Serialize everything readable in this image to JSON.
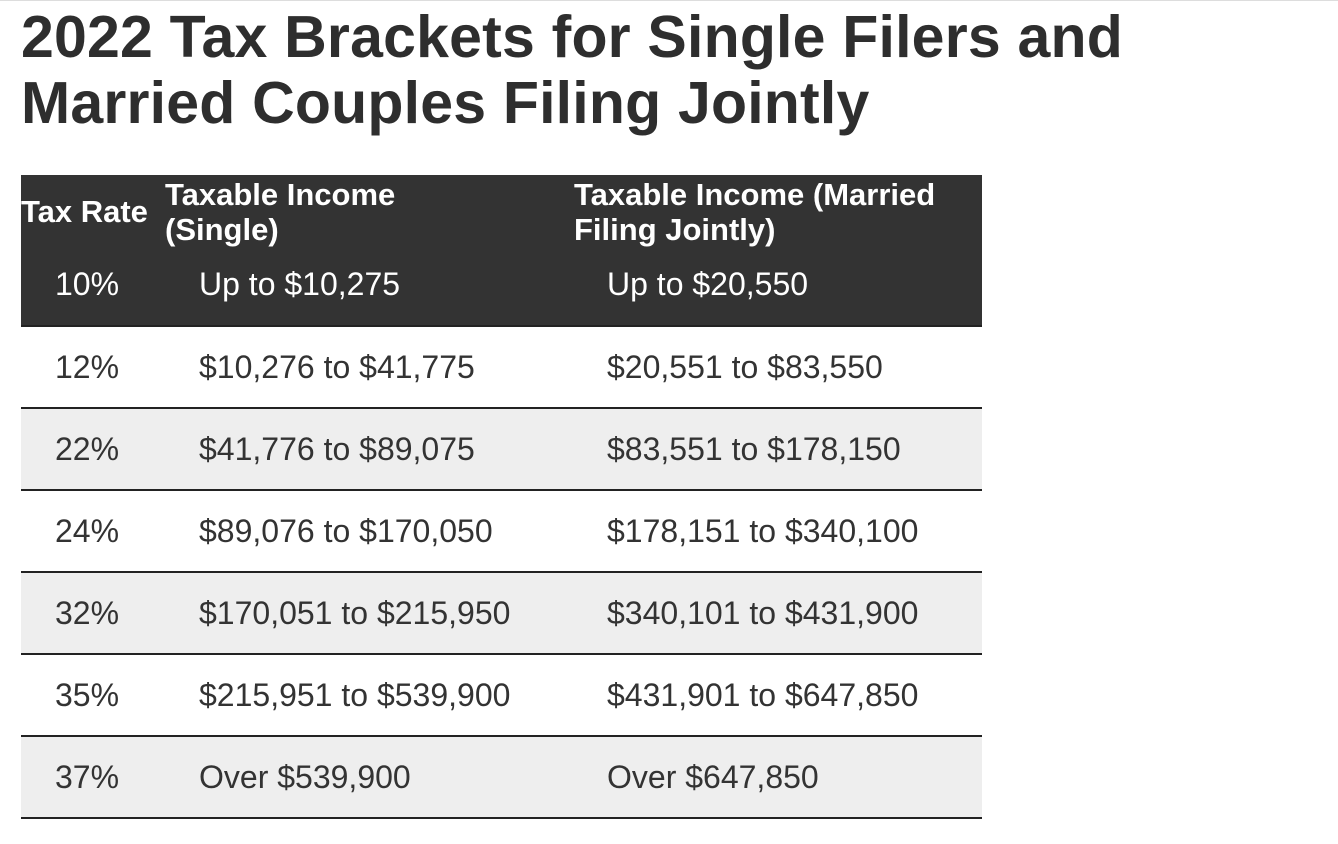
{
  "title": "2022 Tax Brackets for Single Filers and Married Couples Filing Jointly",
  "table": {
    "headers": [
      "Tax Rate",
      "Taxable Income (Single)",
      "Taxable Income (Married Filing Jointly)"
    ],
    "rows": [
      [
        "10%",
        "Up to $10,275",
        "Up to $20,550"
      ],
      [
        "12%",
        "$10,276 to $41,775",
        "$20,551 to $83,550"
      ],
      [
        "22%",
        "$41,776 to $89,075",
        "$83,551 to $178,150"
      ],
      [
        "24%",
        "$89,076 to $170,050",
        "$178,151 to $340,100"
      ],
      [
        "32%",
        "$170,051 to $215,950",
        "$340,101 to $431,900"
      ],
      [
        "35%",
        "$215,951 to $539,900",
        "$431,901 to $647,850"
      ],
      [
        "37%",
        "Over $539,900",
        "Over $647,850"
      ]
    ]
  }
}
